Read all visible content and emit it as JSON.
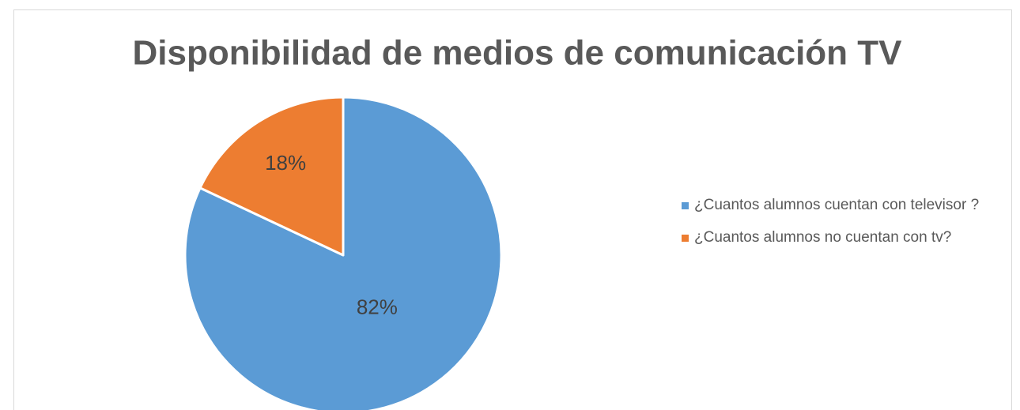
{
  "chart_data": {
    "type": "pie",
    "title": "Disponibilidad de medios de comunicación TV",
    "categories": [
      "¿Cuantos alumnos cuentan con televisor ?",
      "¿Cuantos alumnos no cuentan con tv?"
    ],
    "values": [
      82,
      18
    ],
    "value_labels": [
      "82%",
      "18%"
    ],
    "colors": [
      "#5b9bd5",
      "#ed7d31"
    ],
    "legend": "right"
  }
}
